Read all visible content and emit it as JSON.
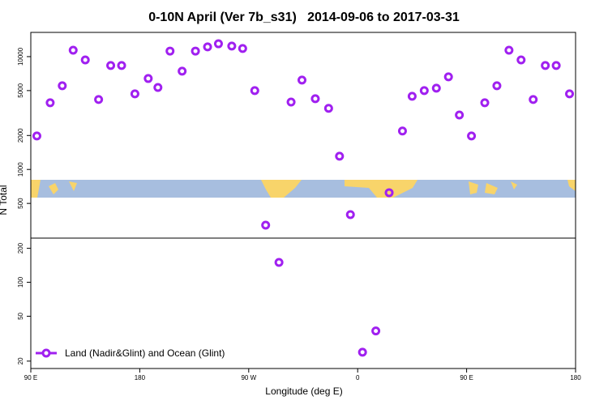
{
  "chart_data": {
    "type": "scatter",
    "title": "0-10N April (Ver 7b_s31)   2014-09-06 to 2017-03-31",
    "x_label": "Longitude (deg E)",
    "y_label": "N Total",
    "log_y": true,
    "legend_position": "bottom-left",
    "xlim": [
      90,
      540
    ],
    "xticks": [
      {
        "value": 90,
        "label": "90 E"
      },
      {
        "value": 180,
        "label": "180"
      },
      {
        "value": 270,
        "label": "90 W"
      },
      {
        "value": 360,
        "label": "0"
      },
      {
        "value": 450,
        "label": "90 E"
      },
      {
        "value": 540,
        "label": "180"
      }
    ],
    "ylim": [
      17.2,
      16400
    ],
    "yticks": [
      20,
      50,
      100,
      200,
      500,
      1000,
      2000,
      5000,
      10000
    ],
    "series": [
      {
        "name": "Land (Nadir&Glint) and Ocean (Glint)",
        "color": "#a020f0",
        "x": [
          95,
          106,
          116,
          125,
          135,
          146,
          156,
          165,
          176,
          187,
          195,
          205,
          215,
          226,
          236,
          245,
          256,
          265,
          275,
          284,
          295,
          305,
          314,
          325,
          336,
          345,
          354,
          364,
          375,
          386,
          397,
          405,
          415,
          425,
          435,
          444,
          454,
          465,
          475,
          485,
          495,
          505,
          515,
          524,
          535
        ],
        "values": [
          1980,
          3900,
          5520,
          11400,
          9350,
          4170,
          8340,
          8340,
          4680,
          6400,
          5330,
          11200,
          7430,
          11200,
          12200,
          13000,
          12400,
          11800,
          5000,
          321,
          150,
          3960,
          6200,
          4240,
          3480,
          1310,
          398,
          24,
          37,
          622,
          2190,
          4450,
          5000,
          5250,
          6620,
          3040,
          1980,
          3900,
          5520,
          11400,
          9350,
          4170,
          8340,
          8340,
          4680
        ]
      }
    ]
  }
}
